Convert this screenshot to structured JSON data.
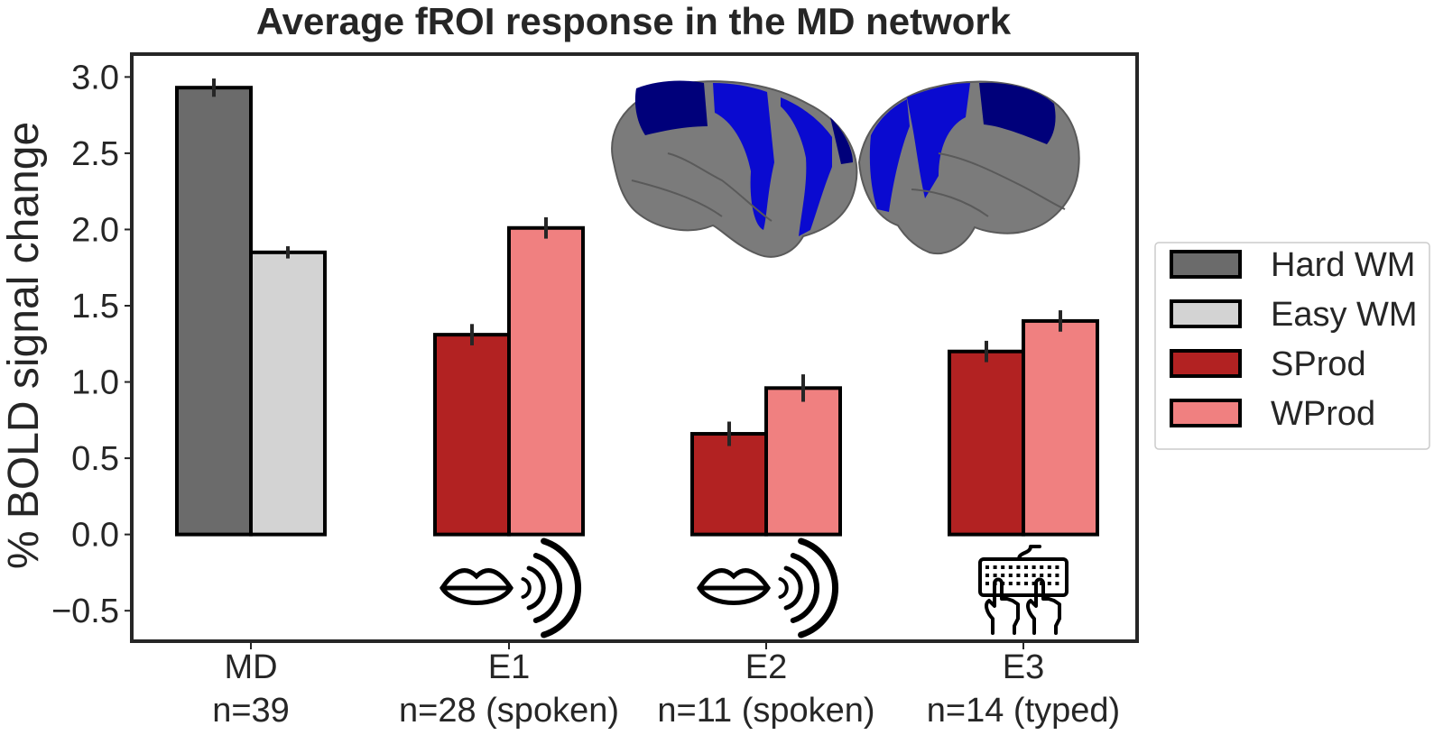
{
  "chart_data": {
    "type": "bar",
    "title": "Average fROI response in the MD network",
    "ylabel": "% BOLD signal change",
    "xlabel": "",
    "ylim": [
      -0.7,
      3.15
    ],
    "yticks": [
      "3.0",
      "2.5",
      "2.0",
      "1.5",
      "1.0",
      "0.5",
      "0.0",
      "−0.5"
    ],
    "ytick_values": [
      3.0,
      2.5,
      2.0,
      1.5,
      1.0,
      0.5,
      0.0,
      -0.5
    ],
    "grid": false,
    "legend_position": "right",
    "groups": [
      {
        "label": "MD",
        "sublabel": "n=39",
        "icon": "none",
        "bars": [
          {
            "series": "Hard WM",
            "value": 2.93,
            "error": 0.06
          },
          {
            "series": "Easy WM",
            "value": 1.85,
            "error": 0.04
          }
        ]
      },
      {
        "label": "E1",
        "sublabel": "n=28 (spoken)",
        "icon": "speaking-mouth-icon",
        "bars": [
          {
            "series": "SProd",
            "value": 1.31,
            "error": 0.07
          },
          {
            "series": "WProd",
            "value": 2.01,
            "error": 0.07
          }
        ]
      },
      {
        "label": "E2",
        "sublabel": "n=11 (spoken)",
        "icon": "speaking-mouth-icon",
        "bars": [
          {
            "series": "SProd",
            "value": 0.66,
            "error": 0.08
          },
          {
            "series": "WProd",
            "value": 0.96,
            "error": 0.09
          }
        ]
      },
      {
        "label": "E3",
        "sublabel": "n=14 (typed)",
        "icon": "typing-keyboard-icon",
        "bars": [
          {
            "series": "SProd",
            "value": 1.2,
            "error": 0.07
          },
          {
            "series": "WProd",
            "value": 1.4,
            "error": 0.07
          }
        ]
      }
    ],
    "series": [
      {
        "name": "Hard WM",
        "color": "#6b6b6b"
      },
      {
        "name": "Easy WM",
        "color": "#d3d3d3"
      },
      {
        "name": "SProd",
        "color": "#b22222"
      },
      {
        "name": "WProd",
        "color": "#f08080"
      }
    ],
    "inset_image": "brain-lateral-views-md-network",
    "network_color": "#0a0ad0"
  }
}
